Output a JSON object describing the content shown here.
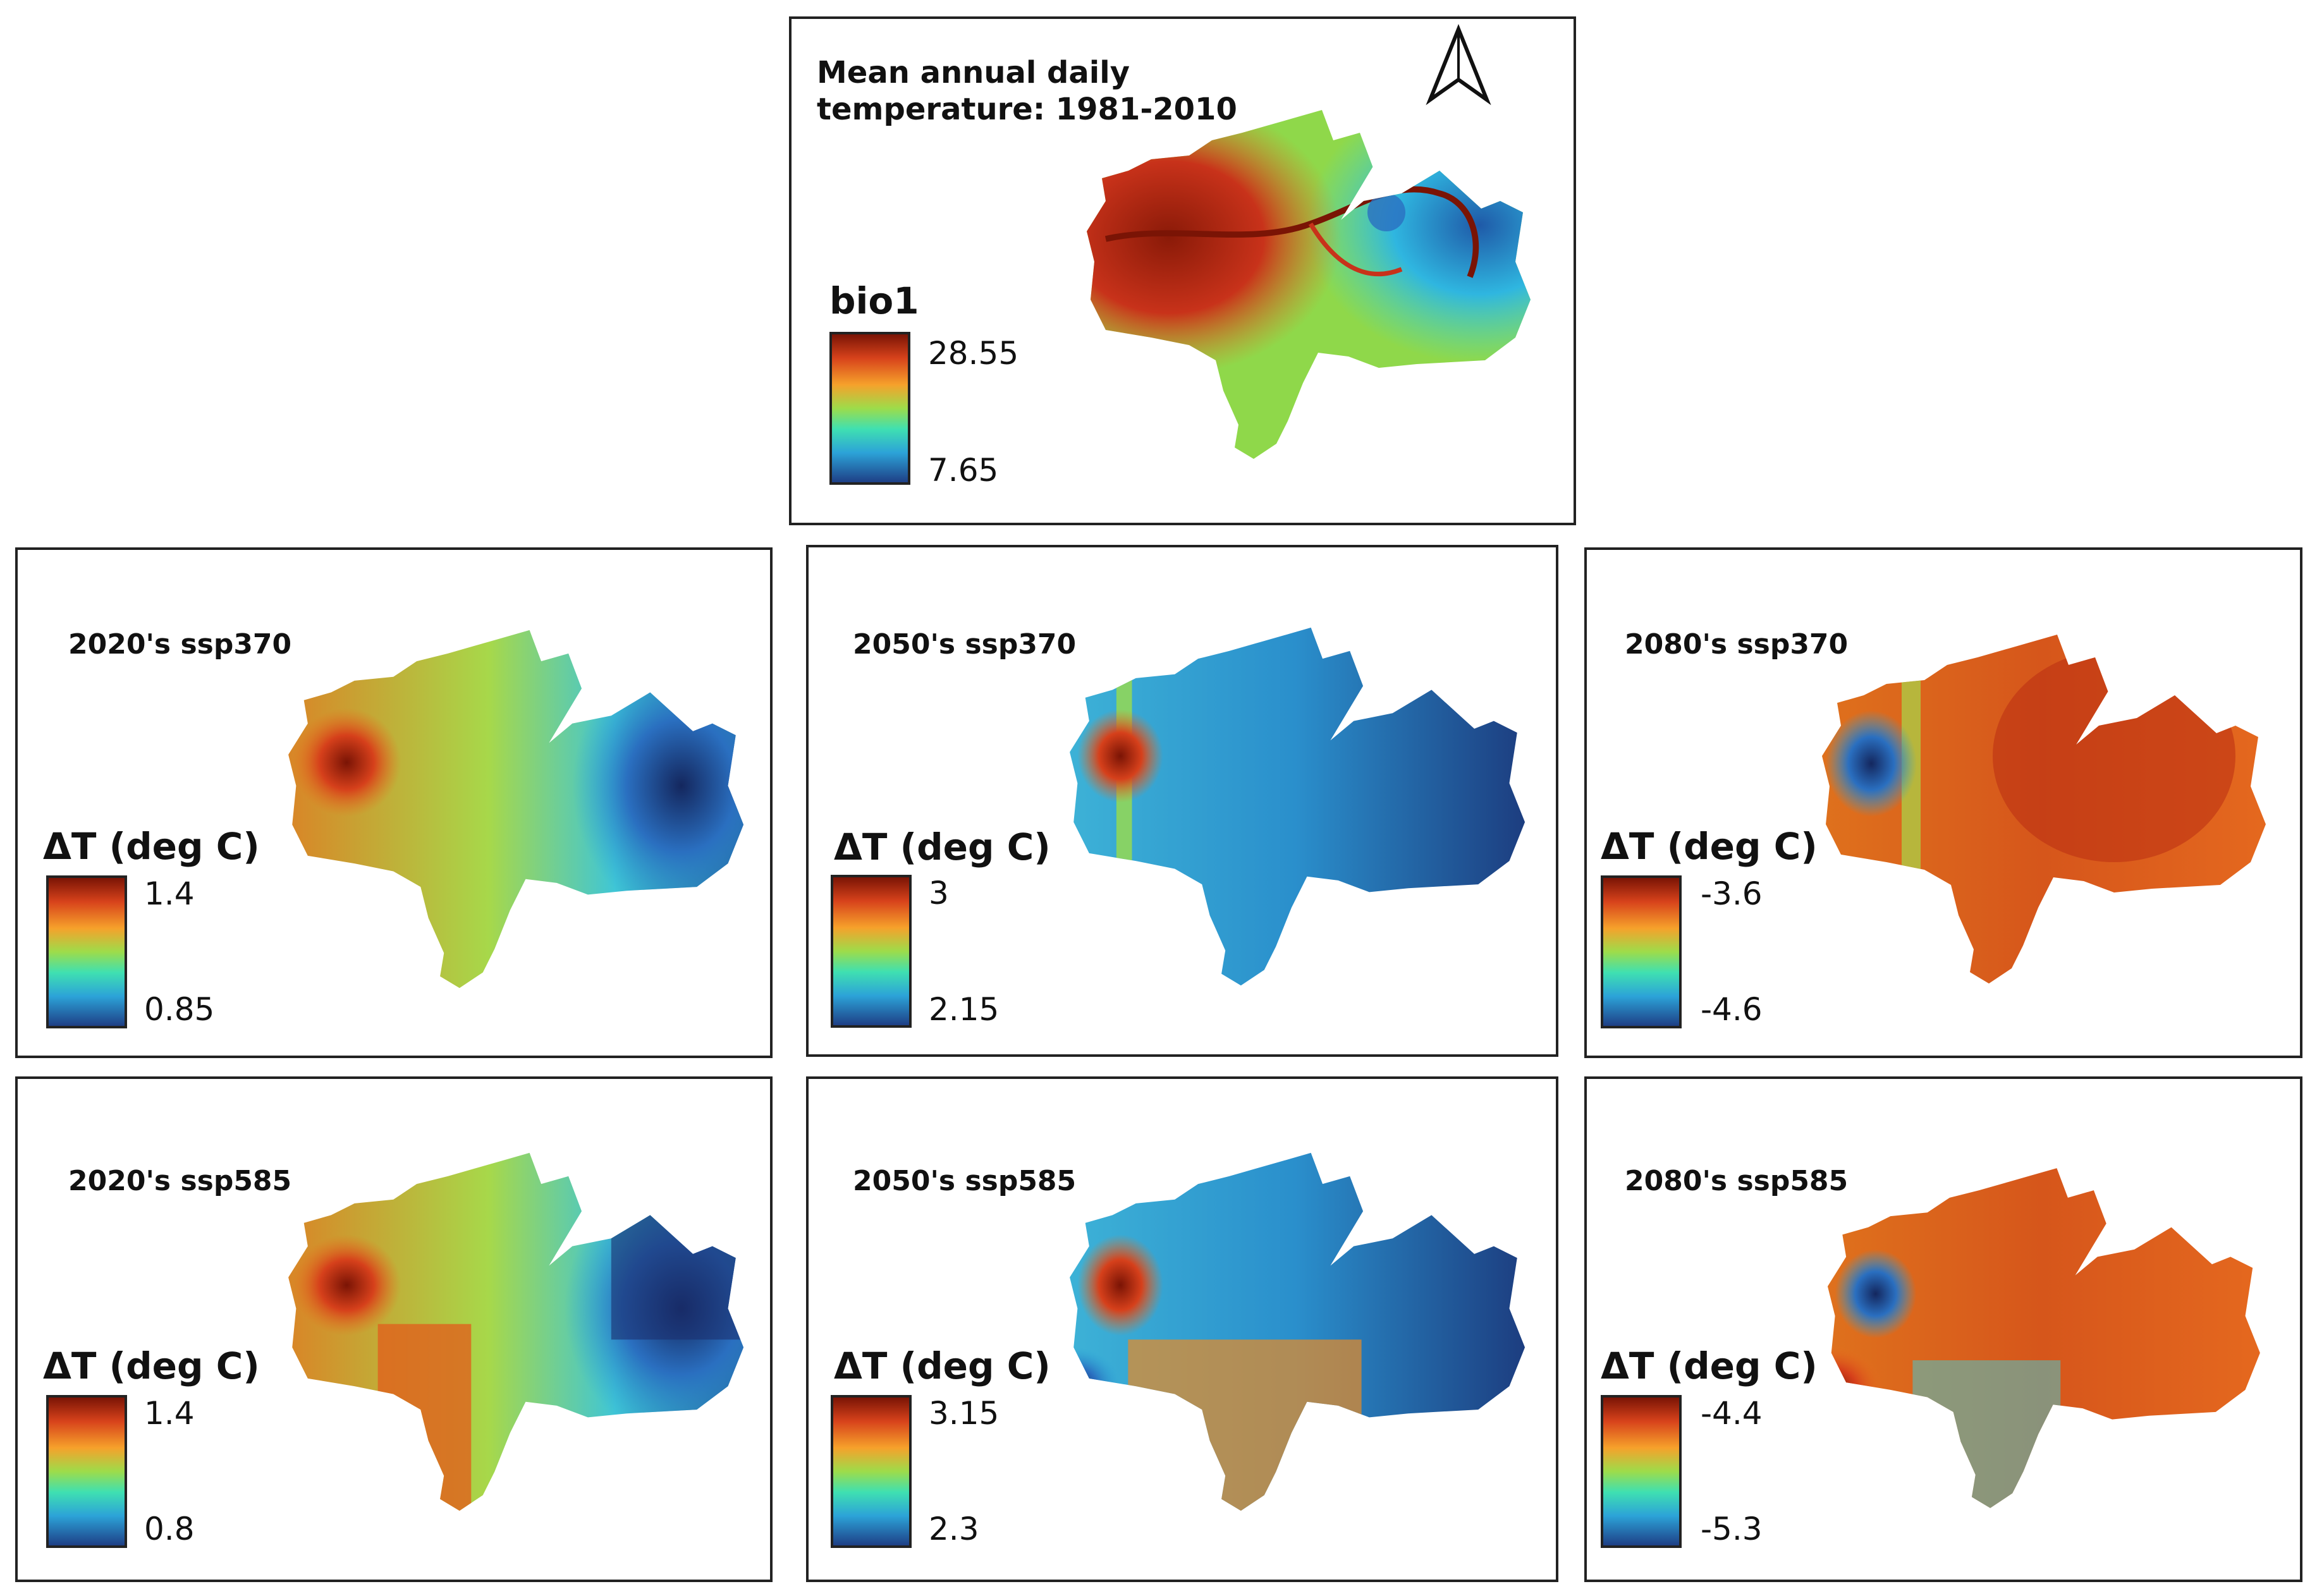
{
  "colors": {
    "hot": "#7a1405",
    "orange": "#e8701e",
    "yellow": "#f3c63a",
    "green": "#86dd47",
    "cyan": "#3fd6cf",
    "blue": "#2b8fd0",
    "dark_blue": "#1b2f6e",
    "frame": "#222222"
  },
  "north_arrow": "north-arrow-icon",
  "baseline": {
    "title_line1": "Mean annual daily",
    "title_line2": "temperature: 1981-2010",
    "legend_title": "bio1",
    "legend_max": "28.55",
    "legend_min": "7.65"
  },
  "panels": [
    {
      "title": "2020's ssp370",
      "legend_title": "ΔT (deg C)",
      "legend_max": "1.4",
      "legend_min": "0.85"
    },
    {
      "title": "2050's ssp370",
      "legend_title": "ΔT (deg C)",
      "legend_max": "3",
      "legend_min": "2.15"
    },
    {
      "title": "2080's ssp370",
      "legend_title": "ΔT (deg C)",
      "legend_max": "-3.6",
      "legend_min": "-4.6"
    },
    {
      "title": "2020's ssp585",
      "legend_title": "ΔT (deg C)",
      "legend_max": "1.4",
      "legend_min": "0.8"
    },
    {
      "title": "2050's ssp585",
      "legend_title": "ΔT (deg C)",
      "legend_max": "3.15",
      "legend_min": "2.3"
    },
    {
      "title": "2080's ssp585",
      "legend_title": "ΔT (deg C)",
      "legend_max": "-4.4",
      "legend_min": "-5.3"
    }
  ]
}
